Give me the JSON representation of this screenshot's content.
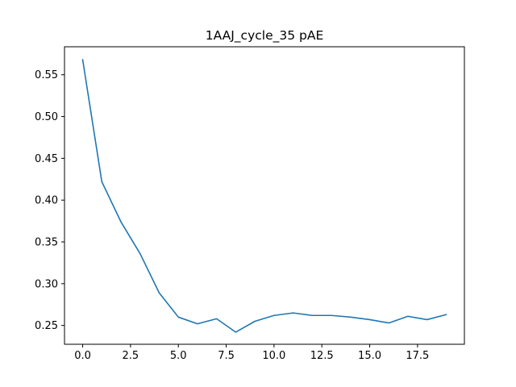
{
  "chart_data": {
    "type": "line",
    "title": "1AAJ_cycle_35 pAE",
    "xlabel": "",
    "ylabel": "",
    "xlim": [
      -0.95,
      19.95
    ],
    "ylim": [
      0.2275,
      0.5835
    ],
    "xticks": [
      0,
      2.5,
      5,
      7.5,
      10,
      12.5,
      15,
      17.5
    ],
    "xtick_labels": [
      "0.0",
      "2.5",
      "5.0",
      "7.5",
      "10.0",
      "12.5",
      "15.0",
      "17.5"
    ],
    "yticks": [
      0.25,
      0.3,
      0.35,
      0.4,
      0.45,
      0.5,
      0.55
    ],
    "ytick_labels": [
      "0.25",
      "0.30",
      "0.35",
      "0.40",
      "0.45",
      "0.50",
      "0.55"
    ],
    "grid": false,
    "series": [
      {
        "color": "#1f77b4",
        "x": [
          0,
          1,
          2,
          3,
          4,
          5,
          6,
          7,
          8,
          9,
          10,
          11,
          12,
          13,
          14,
          15,
          16,
          17,
          18,
          19
        ],
        "y": [
          0.568,
          0.422,
          0.374,
          0.336,
          0.289,
          0.26,
          0.252,
          0.258,
          0.242,
          0.255,
          0.262,
          0.265,
          0.262,
          0.262,
          0.26,
          0.257,
          0.253,
          0.261,
          0.257,
          0.263
        ]
      }
    ]
  }
}
